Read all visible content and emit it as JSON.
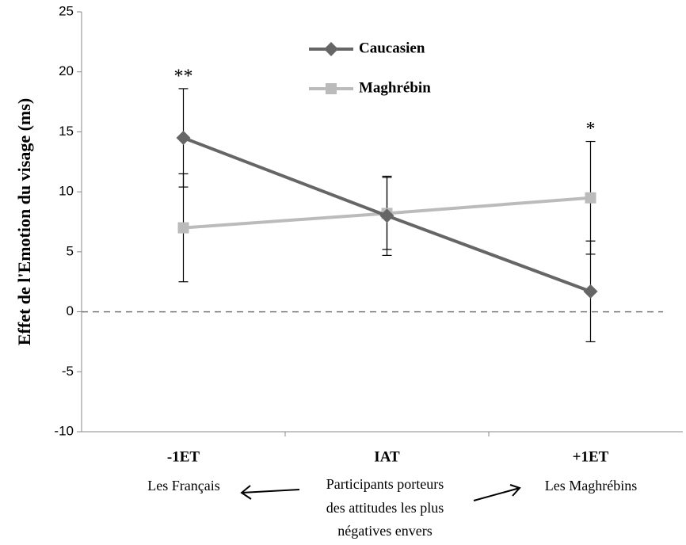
{
  "chart_data": {
    "type": "line",
    "y_label": "Effet de l'Emotion du visage (ms)",
    "categories": [
      "-1ET",
      "IAT",
      "+1ET"
    ],
    "series": [
      {
        "name": "Caucasien",
        "color": "#666666",
        "marker": "diamond",
        "values": [
          14.5,
          8.0,
          1.7
        ],
        "errors": [
          4.1,
          3.3,
          4.2
        ]
      },
      {
        "name": "Maghrébin",
        "color": "#bbbbbb",
        "marker": "square",
        "values": [
          7.0,
          8.2,
          9.5
        ],
        "errors": [
          4.5,
          3.0,
          4.7
        ]
      }
    ],
    "ylim": [
      -10,
      25
    ],
    "yticks": [
      -10,
      -5,
      0,
      5,
      10,
      15,
      20,
      25
    ],
    "reference_lines": [
      0
    ],
    "annotations": [
      {
        "text": "**",
        "x": "-1ET"
      },
      {
        "text": "*",
        "x": "+1ET"
      }
    ],
    "notes": {
      "left": "Les Français",
      "middle": [
        "Participants porteurs",
        "des attitudes les plus",
        "négatives envers"
      ],
      "right": "Les Maghrébins"
    },
    "legend": "top"
  }
}
